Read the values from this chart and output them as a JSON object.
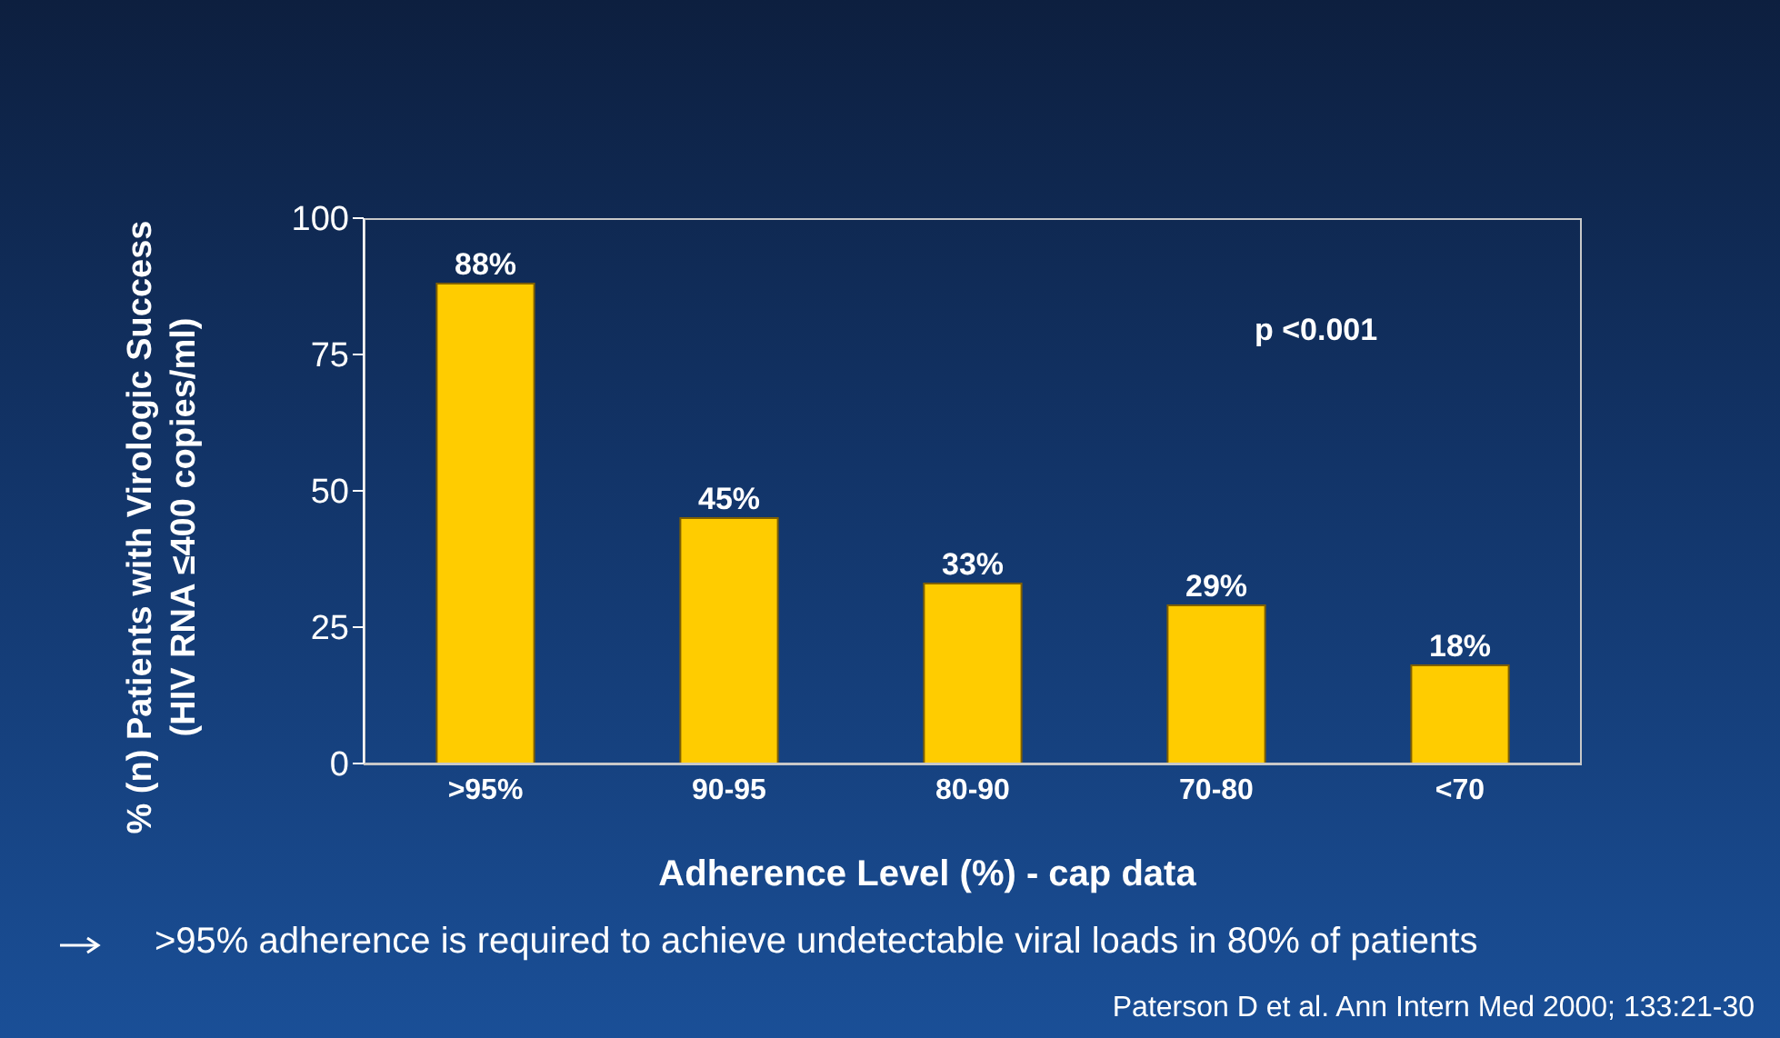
{
  "chart_data": {
    "type": "bar",
    "ylabel": "% (n) Patients with Virologic Success\n(HIV RNA ≤400 copies/ml)",
    "xlabel": "Adherence Level (%) - cap data",
    "categories": [
      ">95%",
      "90-95",
      "80-90",
      "70-80",
      "<70"
    ],
    "values": [
      88,
      45,
      33,
      29,
      18
    ],
    "color": "#ffcc00",
    "value_labels": [
      "88%",
      "45%",
      "33%",
      "29%",
      "18%"
    ],
    "ylim": [
      0,
      100
    ],
    "yticks": [
      0,
      25,
      50,
      75,
      100
    ],
    "annotations": [
      "p <0.001",
      ">95% adherence is required to achieve undetectable viral loads in 80% of patients",
      "Paterson D et al. Ann Intern Med 2000; 133:21-30"
    ]
  }
}
